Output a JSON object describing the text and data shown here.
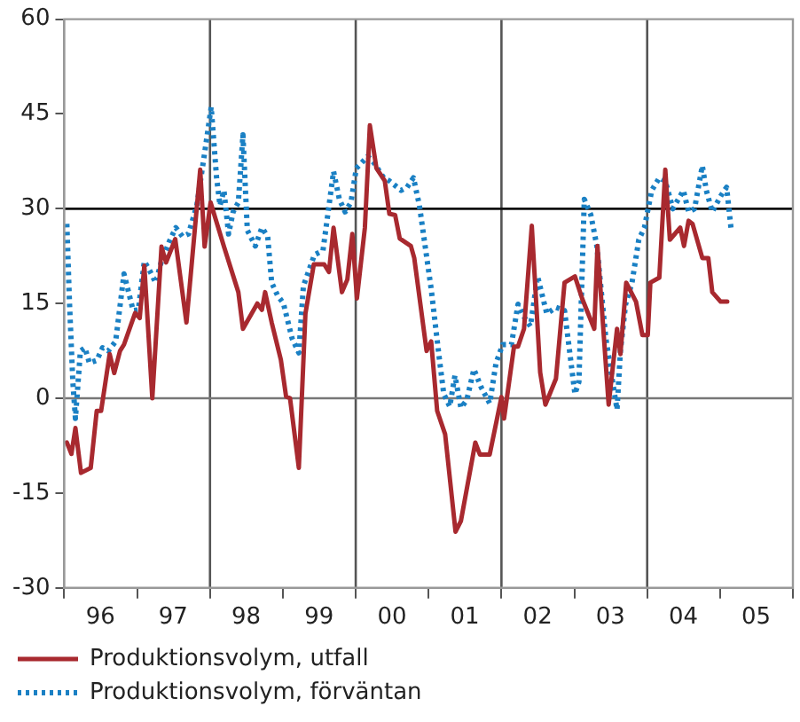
{
  "chart_data": {
    "type": "line",
    "xlim": [
      "1996-01-01",
      "2006-01-01"
    ],
    "xticks": [
      {
        "value": "1996-01-01",
        "label": null
      },
      {
        "value": "1996-07-01",
        "label": "96"
      },
      {
        "value": "1997-01-01",
        "label": null
      },
      {
        "value": "1997-07-01",
        "label": "97"
      },
      {
        "value": "1998-01-01",
        "label": null
      },
      {
        "value": "1998-07-01",
        "label": "98"
      },
      {
        "value": "1999-01-01",
        "label": null
      },
      {
        "value": "1999-07-01",
        "label": "99"
      },
      {
        "value": "2000-01-01",
        "label": null
      },
      {
        "value": "2000-07-01",
        "label": "00"
      },
      {
        "value": "2001-01-01",
        "label": null
      },
      {
        "value": "2001-07-01",
        "label": "01"
      },
      {
        "value": "2002-01-01",
        "label": null
      },
      {
        "value": "2002-07-01",
        "label": "02"
      },
      {
        "value": "2003-01-01",
        "label": null
      },
      {
        "value": "2003-07-01",
        "label": "03"
      },
      {
        "value": "2004-01-01",
        "label": null
      },
      {
        "value": "2004-07-01",
        "label": "04"
      },
      {
        "value": "2005-01-01",
        "label": null
      },
      {
        "value": "2005-07-01",
        "label": "05"
      },
      {
        "value": "2006-01-01",
        "label": null
      }
    ],
    "ylim": [
      -30,
      60
    ],
    "yticks": [
      -30,
      -15,
      0,
      15,
      30,
      45,
      60
    ],
    "grid": false,
    "legend": "bottom",
    "marker": "none",
    "ref_lines": [
      {
        "axis": "x",
        "value": "1998-01-01",
        "color": "#555555"
      },
      {
        "axis": "x",
        "value": "2000-01-01",
        "color": "#555555"
      },
      {
        "axis": "x",
        "value": "2002-01-01",
        "color": "#555555"
      },
      {
        "axis": "x",
        "value": "2004-01-01",
        "color": "#555555"
      },
      {
        "axis": "y",
        "value": 0,
        "color": "#777777"
      },
      {
        "axis": "y",
        "value": 30,
        "color": "#111111"
      }
    ],
    "series": [
      {
        "name": "Produktionsvolym, utfall",
        "color": "#a8292f",
        "line_style": "solid",
        "x": [
          "1996-01-14",
          "1996-02-06",
          "1996-02-26",
          "1996-03-25",
          "1996-05-13",
          "1996-06-12",
          "1996-07-04",
          "1996-08-16",
          "1996-09-08",
          "1996-10-07",
          "1996-10-27",
          "1996-12-22",
          "1997-01-14",
          "1997-02-06",
          "1997-03-18",
          "1997-05-03",
          "1997-05-26",
          "1997-07-11",
          "1997-09-05",
          "1997-11-13",
          "1997-12-05",
          "1998-01-04",
          "1998-03-12",
          "1998-05-23",
          "1998-06-15",
          "1998-08-26",
          "1998-09-18",
          "1998-10-04",
          "1998-11-06",
          "1998-12-22",
          "1999-01-17",
          "1999-02-06",
          "1999-03-22",
          "1999-04-24",
          "1999-06-05",
          "1999-07-27",
          "1999-08-20",
          "1999-09-12",
          "1999-10-24",
          "1999-11-20",
          "1999-12-15",
          "2000-01-07",
          "2000-02-16",
          "2000-03-12",
          "2000-04-14",
          "2000-05-26",
          "2000-06-18",
          "2000-07-17",
          "2000-08-09",
          "2000-10-04",
          "2000-10-21",
          "2000-12-22",
          "2001-01-14",
          "2001-02-13",
          "2001-03-25",
          "2001-05-16",
          "2001-06-12",
          "2001-08-23",
          "2001-09-15",
          "2001-11-03",
          "2002-01-01",
          "2002-01-14",
          "2002-03-05",
          "2002-03-25",
          "2002-04-24",
          "2002-06-02",
          "2002-07-14",
          "2002-08-09",
          "2002-10-01",
          "2002-11-13",
          "2003-01-04",
          "2003-02-09",
          "2003-04-11",
          "2003-04-27",
          "2003-06-22",
          "2003-08-03",
          "2003-08-20",
          "2003-09-18",
          "2003-11-06",
          "2003-12-08",
          "2004-01-04",
          "2004-01-17",
          "2004-03-02",
          "2004-04-01",
          "2004-04-24",
          "2004-06-15",
          "2004-07-04",
          "2004-07-27",
          "2004-08-16",
          "2004-10-04",
          "2004-11-03",
          "2004-11-23",
          "2005-01-04",
          "2005-02-06"
        ],
        "values": [
          -7,
          -8.8,
          -4.7,
          -11.8,
          -11,
          -2,
          -2,
          7,
          4,
          7.5,
          8.5,
          13.5,
          12.7,
          21,
          0,
          24,
          21.5,
          25.2,
          12,
          36.2,
          24,
          31,
          24,
          16.8,
          11,
          15,
          14,
          16.8,
          12,
          6.1,
          0.3,
          0,
          -11,
          13.4,
          21.2,
          21.2,
          20,
          27,
          16.8,
          18.8,
          26,
          15.8,
          27,
          43.2,
          36.4,
          34.4,
          29.2,
          29,
          25.3,
          24.1,
          22.2,
          7.5,
          9,
          -2,
          -5.7,
          -21.1,
          -19.4,
          -7,
          -8.9,
          -8.9,
          0.2,
          -3.2,
          8.2,
          8.2,
          11,
          27.3,
          4.1,
          -1,
          3.1,
          18.3,
          19.3,
          15.8,
          11,
          24.1,
          -1,
          11,
          7,
          18.3,
          15.3,
          10,
          10,
          18.3,
          19.1,
          36.2,
          25.1,
          27,
          24.1,
          28.1,
          27.6,
          22.2,
          22.2,
          16.8,
          15.3,
          15.3
        ]
      },
      {
        "name": "Produktionsvolym, förväntan",
        "color": "#1a80c4",
        "line_style": "dotted",
        "x": [
          "1996-01-14",
          "1996-01-27",
          "1996-02-13",
          "1996-02-26",
          "1996-03-22",
          "1996-04-14",
          "1996-05-06",
          "1996-06-12",
          "1996-07-11",
          "1996-08-09",
          "1996-09-15",
          "1996-10-27",
          "1996-11-23",
          "1996-12-12",
          "1997-01-07",
          "1997-02-06",
          "1997-03-05",
          "1997-04-04",
          "1997-05-03",
          "1997-06-15",
          "1997-07-14",
          "1997-08-16",
          "1997-09-15",
          "1997-10-27",
          "1997-12-05",
          "1998-01-07",
          "1998-02-03",
          "1998-02-20",
          "1998-03-12",
          "1998-04-04",
          "1998-04-27",
          "1998-05-23",
          "1998-06-15",
          "1998-07-07",
          "1998-08-16",
          "1998-09-18",
          "1998-10-17",
          "1998-11-06",
          "1998-12-05",
          "1999-01-04",
          "1999-02-16",
          "1999-03-22",
          "1999-04-14",
          "1999-06-08",
          "1999-07-21",
          "1999-09-12",
          "1999-10-11",
          "1999-11-09",
          "1999-12-08",
          "2000-01-04",
          "2000-03-02",
          "2000-04-01",
          "2000-05-20",
          "2000-06-18",
          "2000-08-16",
          "2000-09-15",
          "2000-10-17",
          "2000-11-16",
          "2001-01-14",
          "2001-02-23",
          "2001-03-18",
          "2001-04-17",
          "2001-05-13",
          "2001-06-12",
          "2001-07-11",
          "2001-08-16",
          "2001-09-22",
          "2001-11-03",
          "2001-12-05",
          "2002-01-07",
          "2002-02-20",
          "2002-03-25",
          "2002-04-24",
          "2002-05-26",
          "2002-07-01",
          "2002-08-16",
          "2002-10-01",
          "2002-11-13",
          "2003-01-04",
          "2003-01-24",
          "2003-02-20",
          "2003-03-25",
          "2003-04-24",
          "2003-06-08",
          "2003-07-07",
          "2003-08-03",
          "2003-08-20",
          "2003-09-15",
          "2003-10-17",
          "2003-11-20",
          "2003-12-18",
          "2004-01-24",
          "2004-03-02",
          "2004-04-01",
          "2004-05-09",
          "2004-07-01",
          "2004-07-27",
          "2004-08-26",
          "2004-10-04",
          "2004-10-24",
          "2004-11-23",
          "2005-01-04",
          "2005-02-03",
          "2005-02-26"
        ],
        "values": [
          27.6,
          15.3,
          2.6,
          -3.2,
          7.5,
          8,
          5.6,
          6,
          8,
          7.5,
          9,
          19.7,
          16.3,
          13.9,
          14,
          21.7,
          20.2,
          18.3,
          21.7,
          25.1,
          27,
          25.6,
          26,
          30.5,
          38.8,
          46.1,
          34.9,
          30.5,
          32.9,
          26,
          29.5,
          31,
          41.7,
          26.6,
          24.1,
          27,
          25.6,
          18.3,
          16.3,
          15,
          9.5,
          7.2,
          17.8,
          22.7,
          23.4,
          35.9,
          31.5,
          29.5,
          31,
          36.4,
          38.3,
          37.3,
          34.9,
          34.4,
          32.9,
          33.4,
          34.9,
          30.5,
          17.3,
          6.5,
          0.7,
          -1.3,
          3.6,
          -1.5,
          -0.3,
          4.6,
          1.7,
          -0.8,
          5.6,
          8.5,
          8.5,
          14.9,
          12.9,
          11.4,
          19.3,
          13.4,
          14.4,
          13.9,
          0.7,
          2.6,
          31.5,
          29,
          24.1,
          9.5,
          3.6,
          -1.8,
          7.5,
          14.9,
          18.3,
          25.1,
          27,
          32.9,
          34.9,
          34.4,
          30,
          32.9,
          29.5,
          30,
          36.8,
          32.9,
          29.5,
          32,
          33.4,
          26.6
        ]
      }
    ]
  }
}
